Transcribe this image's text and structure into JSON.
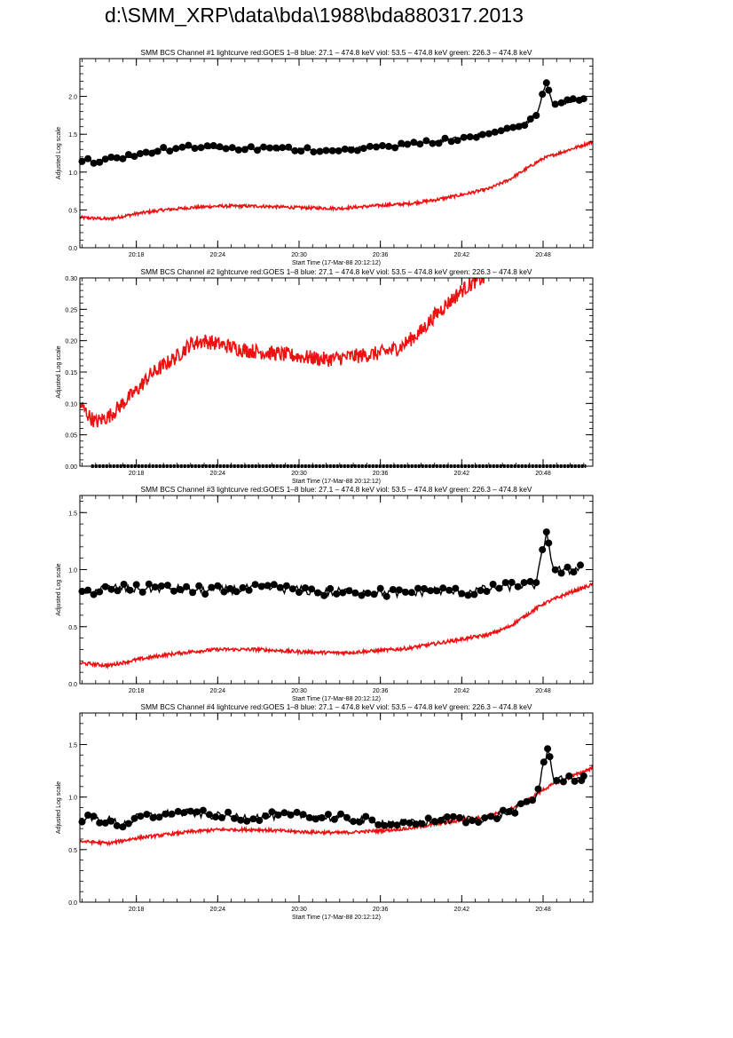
{
  "page": {
    "title": "d:\\SMM_XRP\\data\\bda\\1988\\bda880317.2013"
  },
  "colors": {
    "goes": "#ee1111",
    "bcs": "#000000",
    "axis": "#000000"
  },
  "chart_data": [
    {
      "type": "line",
      "title": "SMM BCS Channel #1 lightcurve  red:GOES 1–8  blue: 27.1 – 474.8 keV  viol: 53.5 – 474.8 keV  green: 226.3 – 474.8 keV",
      "xlabel": "Start Time (17-Mar-88 20:12:12)",
      "ylabel": "Adjusted Log scale",
      "xlim": [
        "20:13:50",
        "20:51:40"
      ],
      "ylim": [
        0,
        2.5
      ],
      "x_tick_labels": [
        "20:18",
        "20:24",
        "20:30",
        "20:36",
        "20:42",
        "20:48"
      ],
      "y_tick_labels": [
        "0.0",
        "0.5",
        "1.0",
        "1.5",
        "2.0"
      ],
      "y_tick_values": [
        0,
        0.5,
        1.0,
        1.5,
        2.0
      ],
      "series": [
        {
          "color": "red",
          "style": "noisy-line",
          "x": [
            "20:13:50",
            "20:16:00",
            "20:18:00",
            "20:20:00",
            "20:22:00",
            "20:24:00",
            "20:27:00",
            "20:30:00",
            "20:33:00",
            "20:36:00",
            "20:38:00",
            "20:40:00",
            "20:42:00",
            "20:44:00",
            "20:45:30",
            "20:47:00",
            "20:48:00",
            "20:49:00",
            "20:50:00",
            "20:51:40"
          ],
          "values": [
            0.4,
            0.38,
            0.45,
            0.5,
            0.53,
            0.55,
            0.55,
            0.53,
            0.52,
            0.56,
            0.58,
            0.63,
            0.7,
            0.78,
            0.9,
            1.07,
            1.18,
            1.24,
            1.3,
            1.4
          ],
          "noise": 0.02
        },
        {
          "color": "black",
          "style": "line-circles",
          "x": [
            "20:14:00",
            "20:15:00",
            "20:16:00",
            "20:17:00",
            "20:18:00",
            "20:19:00",
            "20:20:00",
            "20:22:00",
            "20:24:00",
            "20:26:00",
            "20:28:00",
            "20:30:00",
            "20:32:00",
            "20:34:00",
            "20:36:00",
            "20:38:00",
            "20:40:00",
            "20:42:00",
            "20:44:00",
            "20:45:30",
            "20:46:30",
            "20:47:30",
            "20:48:15",
            "20:48:45",
            "20:49:30",
            "20:50:30",
            "20:51:00"
          ],
          "values": [
            1.17,
            1.14,
            1.17,
            1.2,
            1.24,
            1.27,
            1.3,
            1.33,
            1.32,
            1.31,
            1.31,
            1.3,
            1.29,
            1.31,
            1.33,
            1.36,
            1.4,
            1.45,
            1.5,
            1.56,
            1.63,
            1.75,
            2.18,
            1.88,
            1.92,
            1.95,
            1.97
          ],
          "noise": 0.03
        }
      ]
    },
    {
      "type": "line",
      "title": "SMM BCS Channel #2 lightcurve  red:GOES 1–8  blue: 27.1 – 474.8 keV  viol: 53.5 – 474.8 keV  green: 226.3 – 474.8 keV",
      "xlabel": "Start Time (17-Mar-88 20:12:12)",
      "ylabel": "Adjusted Log scale",
      "xlim": [
        "20:13:50",
        "20:51:40"
      ],
      "ylim": [
        0,
        0.3
      ],
      "x_tick_labels": [
        "20:18",
        "20:24",
        "20:30",
        "20:36",
        "20:42",
        "20:48"
      ],
      "y_tick_labels": [
        "0.00",
        "0.05",
        "0.10",
        "0.15",
        "0.20",
        "0.25",
        "0.30"
      ],
      "y_tick_values": [
        0,
        0.05,
        0.1,
        0.15,
        0.2,
        0.25,
        0.3
      ],
      "series": [
        {
          "color": "red",
          "style": "noisy-line",
          "x": [
            "20:13:50",
            "20:14:30",
            "20:15:00",
            "20:16:00",
            "20:17:00",
            "20:18:00",
            "20:19:00",
            "20:20:00",
            "20:21:00",
            "20:22:00",
            "20:23:00",
            "20:24:00",
            "20:26:00",
            "20:28:00",
            "20:30:00",
            "20:32:00",
            "20:34:00",
            "20:36:00",
            "20:37:30",
            "20:39:00",
            "20:40:00",
            "20:41:00",
            "20:42:00",
            "20:43:00",
            "20:43:40"
          ],
          "values": [
            0.1,
            0.08,
            0.07,
            0.08,
            0.1,
            0.12,
            0.145,
            0.16,
            0.175,
            0.195,
            0.2,
            0.195,
            0.185,
            0.18,
            0.175,
            0.17,
            0.175,
            0.18,
            0.19,
            0.215,
            0.24,
            0.26,
            0.28,
            0.295,
            0.3
          ],
          "noise": 0.012
        },
        {
          "color": "black",
          "style": "flat-line",
          "x": [
            "20:14:40",
            "20:51:10"
          ],
          "values": [
            0.0,
            0.0
          ],
          "noise": 0
        }
      ]
    },
    {
      "type": "line",
      "title": "SMM BCS Channel #3 lightcurve  red:GOES 1–8  blue: 27.1 – 474.8 keV  viol: 53.5 – 474.8 keV  green: 226.3 – 474.8 keV",
      "xlabel": "Start Time (17-Mar-88 20:12:12)",
      "ylabel": "Adjusted Log scale",
      "xlim": [
        "20:13:50",
        "20:51:40"
      ],
      "ylim": [
        0,
        1.65
      ],
      "x_tick_labels": [
        "20:18",
        "20:24",
        "20:30",
        "20:36",
        "20:42",
        "20:48"
      ],
      "y_tick_labels": [
        "0.0",
        "0.5",
        "1.0",
        "1.5"
      ],
      "y_tick_values": [
        0,
        0.5,
        1.0,
        1.5
      ],
      "series": [
        {
          "color": "red",
          "style": "noisy-line",
          "x": [
            "20:13:50",
            "20:16:00",
            "20:18:00",
            "20:20:00",
            "20:22:00",
            "20:24:00",
            "20:27:00",
            "20:30:00",
            "20:33:00",
            "20:36:00",
            "20:38:00",
            "20:40:00",
            "20:42:00",
            "20:44:00",
            "20:45:30",
            "20:47:00",
            "20:48:00",
            "20:49:00",
            "20:50:00",
            "20:51:40"
          ],
          "values": [
            0.18,
            0.16,
            0.21,
            0.25,
            0.28,
            0.3,
            0.3,
            0.28,
            0.27,
            0.29,
            0.31,
            0.35,
            0.39,
            0.43,
            0.5,
            0.62,
            0.7,
            0.75,
            0.8,
            0.87
          ],
          "noise": 0.015
        },
        {
          "color": "black",
          "style": "line-circles",
          "x": [
            "20:14:00",
            "20:15:00",
            "20:16:00",
            "20:18:00",
            "20:20:00",
            "20:22:00",
            "20:24:00",
            "20:26:00",
            "20:28:00",
            "20:30:00",
            "20:32:00",
            "20:34:00",
            "20:36:00",
            "20:38:00",
            "20:40:00",
            "20:42:00",
            "20:44:00",
            "20:46:00",
            "20:47:30",
            "20:48:15",
            "20:48:45",
            "20:49:30",
            "20:50:15",
            "20:50:45"
          ],
          "values": [
            0.78,
            0.82,
            0.84,
            0.83,
            0.84,
            0.82,
            0.82,
            0.83,
            0.84,
            0.82,
            0.8,
            0.81,
            0.8,
            0.79,
            0.82,
            0.8,
            0.83,
            0.86,
            0.87,
            1.33,
            1.02,
            0.98,
            1.0,
            1.04
          ],
          "noise": 0.04
        }
      ]
    },
    {
      "type": "line",
      "title": "SMM BCS Channel #4 lightcurve  red:GOES 1–8  blue: 27.1 – 474.8 keV  viol: 53.5 – 474.8 keV  green: 226.3 – 474.8 keV",
      "xlabel": "Start Time (17-Mar-88 20:12:12)",
      "ylabel": "Adjusted Log scale",
      "xlim": [
        "20:13:50",
        "20:51:40"
      ],
      "ylim": [
        0,
        1.8
      ],
      "x_tick_labels": [
        "20:18",
        "20:24",
        "20:30",
        "20:36",
        "20:42",
        "20:48"
      ],
      "y_tick_labels": [
        "0.0",
        "0.5",
        "1.0",
        "1.5"
      ],
      "y_tick_values": [
        0,
        0.5,
        1.0,
        1.5
      ],
      "series": [
        {
          "color": "red",
          "style": "noisy-line",
          "x": [
            "20:13:50",
            "20:16:00",
            "20:18:00",
            "20:20:00",
            "20:22:00",
            "20:24:00",
            "20:27:00",
            "20:30:00",
            "20:33:00",
            "20:36:00",
            "20:38:00",
            "20:40:00",
            "20:42:00",
            "20:44:00",
            "20:45:30",
            "20:47:00",
            "20:48:00",
            "20:49:00",
            "20:50:00",
            "20:51:40"
          ],
          "values": [
            0.58,
            0.56,
            0.61,
            0.64,
            0.67,
            0.69,
            0.69,
            0.67,
            0.66,
            0.68,
            0.7,
            0.74,
            0.78,
            0.82,
            0.88,
            0.98,
            1.07,
            1.14,
            1.19,
            1.28
          ],
          "noise": 0.015
        },
        {
          "color": "black",
          "style": "line-circles",
          "x": [
            "20:14:00",
            "20:15:00",
            "20:16:00",
            "20:17:00",
            "20:18:00",
            "20:20:00",
            "20:22:00",
            "20:24:00",
            "20:26:00",
            "20:28:00",
            "20:30:00",
            "20:32:00",
            "20:34:00",
            "20:36:00",
            "20:38:00",
            "20:40:00",
            "20:42:00",
            "20:44:00",
            "20:45:30",
            "20:46:30",
            "20:47:30",
            "20:48:20",
            "20:48:50",
            "20:49:30",
            "20:50:20",
            "20:51:00"
          ],
          "values": [
            0.8,
            0.79,
            0.78,
            0.74,
            0.8,
            0.84,
            0.85,
            0.82,
            0.81,
            0.82,
            0.83,
            0.81,
            0.79,
            0.76,
            0.75,
            0.77,
            0.79,
            0.8,
            0.86,
            0.92,
            1.0,
            1.46,
            1.17,
            1.18,
            1.17,
            1.2
          ],
          "noise": 0.04
        }
      ]
    }
  ]
}
